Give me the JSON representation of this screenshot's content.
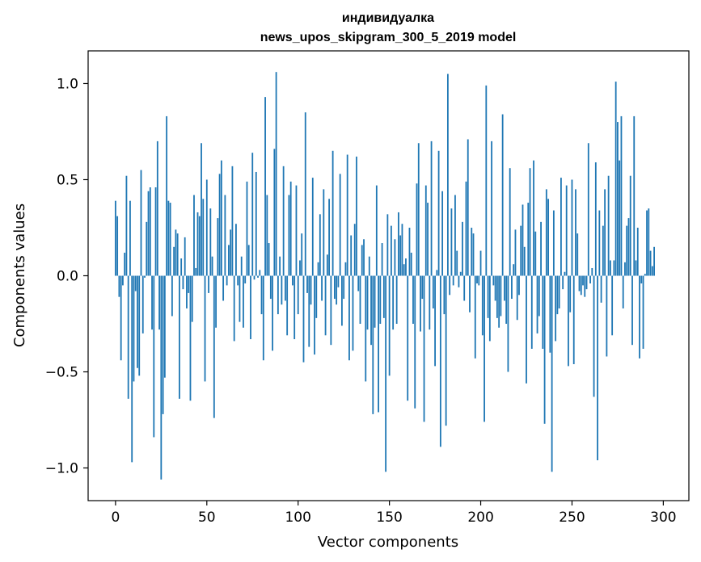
{
  "chart_data": {
    "type": "bar",
    "title": [
      "индивидуалка",
      "news_upos_skipgram_300_5_2019 model"
    ],
    "xlabel": "Vector components",
    "ylabel": "Components values",
    "xlim": [
      -15,
      314
    ],
    "ylim": [
      -1.17,
      1.17
    ],
    "xticks": [
      0,
      50,
      100,
      150,
      200,
      250,
      300
    ],
    "xtick_labels": [
      "0",
      "50",
      "100",
      "150",
      "200",
      "250",
      "300"
    ],
    "yticks": [
      -1.0,
      -0.5,
      0.0,
      0.5,
      1.0
    ],
    "ytick_labels": [
      "−1.0",
      "−0.5",
      "0.0",
      "0.5",
      "1.0"
    ],
    "bar_color": "#1f77b4",
    "grid": false,
    "x_start": 0,
    "values": [
      0.39,
      0.31,
      -0.11,
      -0.44,
      -0.05,
      0.12,
      0.52,
      -0.64,
      0.39,
      -0.97,
      -0.55,
      -0.08,
      -0.48,
      -0.52,
      0.55,
      -0.3,
      -0.01,
      0.28,
      0.44,
      0.46,
      -0.28,
      -0.84,
      0.46,
      0.7,
      -0.28,
      -1.06,
      -0.72,
      -0.53,
      0.83,
      0.39,
      0.38,
      -0.21,
      0.15,
      0.24,
      0.22,
      -0.64,
      0.09,
      -0.07,
      0.2,
      -0.17,
      -0.09,
      -0.65,
      -0.24,
      0.42,
      0.04,
      0.33,
      0.31,
      0.69,
      0.4,
      -0.55,
      0.5,
      -0.09,
      0.35,
      0.1,
      -0.74,
      -0.27,
      0.3,
      0.53,
      0.6,
      -0.13,
      0.42,
      -0.05,
      0.16,
      0.24,
      0.57,
      -0.34,
      0.27,
      -0.05,
      -0.24,
      0.1,
      -0.27,
      -0.04,
      0.49,
      0.16,
      -0.33,
      0.64,
      -0.02,
      0.54,
      -0.01,
      0.03,
      -0.2,
      -0.44,
      0.93,
      0.42,
      0.17,
      -0.12,
      -0.39,
      0.66,
      1.06,
      -0.2,
      0.1,
      -0.15,
      0.57,
      -0.13,
      -0.31,
      0.42,
      0.49,
      -0.05,
      -0.33,
      0.47,
      -0.2,
      0.08,
      0.22,
      -0.45,
      0.85,
      -0.09,
      -0.37,
      -0.15,
      0.51,
      -0.41,
      -0.22,
      0.07,
      0.32,
      -0.13,
      0.45,
      -0.31,
      0.11,
      0.4,
      -0.36,
      0.65,
      -0.12,
      -0.15,
      -0.06,
      0.53,
      -0.26,
      -0.12,
      0.07,
      0.63,
      -0.44,
      0.21,
      -0.39,
      0.27,
      0.62,
      -0.08,
      -0.25,
      0.16,
      0.19,
      -0.55,
      -0.28,
      0.1,
      -0.36,
      -0.72,
      -0.27,
      0.47,
      -0.71,
      -0.25,
      0.17,
      -0.22,
      -1.02,
      0.32,
      -0.52,
      0.26,
      -0.28,
      0.19,
      -0.25,
      0.33,
      0.21,
      0.27,
      0.06,
      0.09,
      -0.65,
      0.25,
      0.12,
      -0.25,
      -0.69,
      0.48,
      0.69,
      -0.29,
      -0.12,
      -0.76,
      0.47,
      0.38,
      -0.28,
      0.7,
      -0.17,
      -0.47,
      0.03,
      0.65,
      -0.89,
      0.44,
      -0.2,
      -0.78,
      1.05,
      -0.1,
      0.35,
      -0.05,
      0.42,
      0.13,
      -0.06,
      0.02,
      0.28,
      -0.13,
      0.49,
      0.71,
      -0.19,
      0.25,
      0.22,
      -0.43,
      -0.04,
      -0.05,
      0.13,
      -0.31,
      -0.76,
      0.99,
      -0.22,
      -0.34,
      0.7,
      -0.05,
      -0.13,
      -0.22,
      -0.27,
      -0.21,
      0.84,
      -0.13,
      -0.25,
      -0.5,
      0.56,
      -0.12,
      0.06,
      0.24,
      -0.23,
      -0.1,
      0.26,
      0.37,
      0.15,
      -0.56,
      0.38,
      0.56,
      -0.38,
      0.6,
      0.23,
      -0.3,
      -0.21,
      0.28,
      -0.38,
      -0.77,
      0.45,
      0.4,
      -0.4,
      -1.02,
      0.34,
      -0.34,
      -0.2,
      -0.17,
      0.51,
      -0.07,
      0.02,
      0.47,
      -0.47,
      -0.19,
      0.5,
      -0.46,
      0.45,
      0.22,
      -0.08,
      -0.1,
      -0.05,
      -0.11,
      -0.07,
      0.69,
      -0.04,
      0.04,
      -0.63,
      0.59,
      -0.96,
      0.34,
      -0.14,
      0.26,
      0.45,
      -0.42,
      0.52,
      0.08,
      -0.31,
      0.08,
      1.01,
      0.8,
      0.6,
      0.83,
      -0.17,
      0.07,
      0.26,
      0.3,
      0.52,
      -0.36,
      0.83,
      0.08,
      0.25,
      -0.43,
      -0.04,
      -0.38,
      0.01,
      0.34,
      0.35,
      0.13,
      0.05,
      0.15
    ]
  }
}
